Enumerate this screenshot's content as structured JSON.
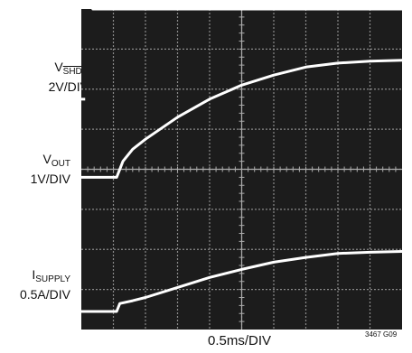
{
  "chart_data": {
    "type": "line",
    "title": "",
    "xlabel": "0.5ms/DIV",
    "figure_id": "3467 G09",
    "grid": true,
    "divisions": {
      "x": 10,
      "y": 8
    },
    "xlim": [
      0,
      5
    ],
    "x_unit": "ms",
    "series": [
      {
        "name": "V_SHDN",
        "label_main": "V",
        "label_sub": "SHDN",
        "scale": "2V/DIV",
        "color": "#ffffff",
        "x": [
          0.18,
          5.0
        ],
        "y": [
          8.0,
          8.0
        ]
      },
      {
        "name": "V_OUT",
        "label_main": "V",
        "label_sub": "OUT",
        "scale": "1V/DIV",
        "color": "#ffffff",
        "x": [
          0.0,
          0.55,
          0.65,
          0.8,
          1.0,
          1.5,
          2.0,
          2.5,
          3.0,
          3.5,
          4.0,
          4.5,
          5.0
        ],
        "y": [
          3.8,
          3.8,
          4.2,
          4.5,
          4.75,
          5.3,
          5.75,
          6.1,
          6.35,
          6.55,
          6.65,
          6.7,
          6.72
        ]
      },
      {
        "name": "I_SUPPLY",
        "label_main": "I",
        "label_sub": "SUPPLY",
        "scale": "0.5A/DIV",
        "color": "#ffffff",
        "x": [
          0.0,
          0.55,
          0.6,
          0.8,
          1.0,
          1.5,
          2.0,
          2.5,
          3.0,
          3.5,
          4.0,
          4.5,
          5.0
        ],
        "y": [
          0.45,
          0.45,
          0.65,
          0.72,
          0.8,
          1.05,
          1.3,
          1.5,
          1.68,
          1.8,
          1.9,
          1.93,
          1.95
        ]
      }
    ],
    "markers": [
      {
        "name": "ground-marker",
        "x_start": -0.06,
        "x_end": 0.06,
        "y": 5.75
      }
    ]
  }
}
